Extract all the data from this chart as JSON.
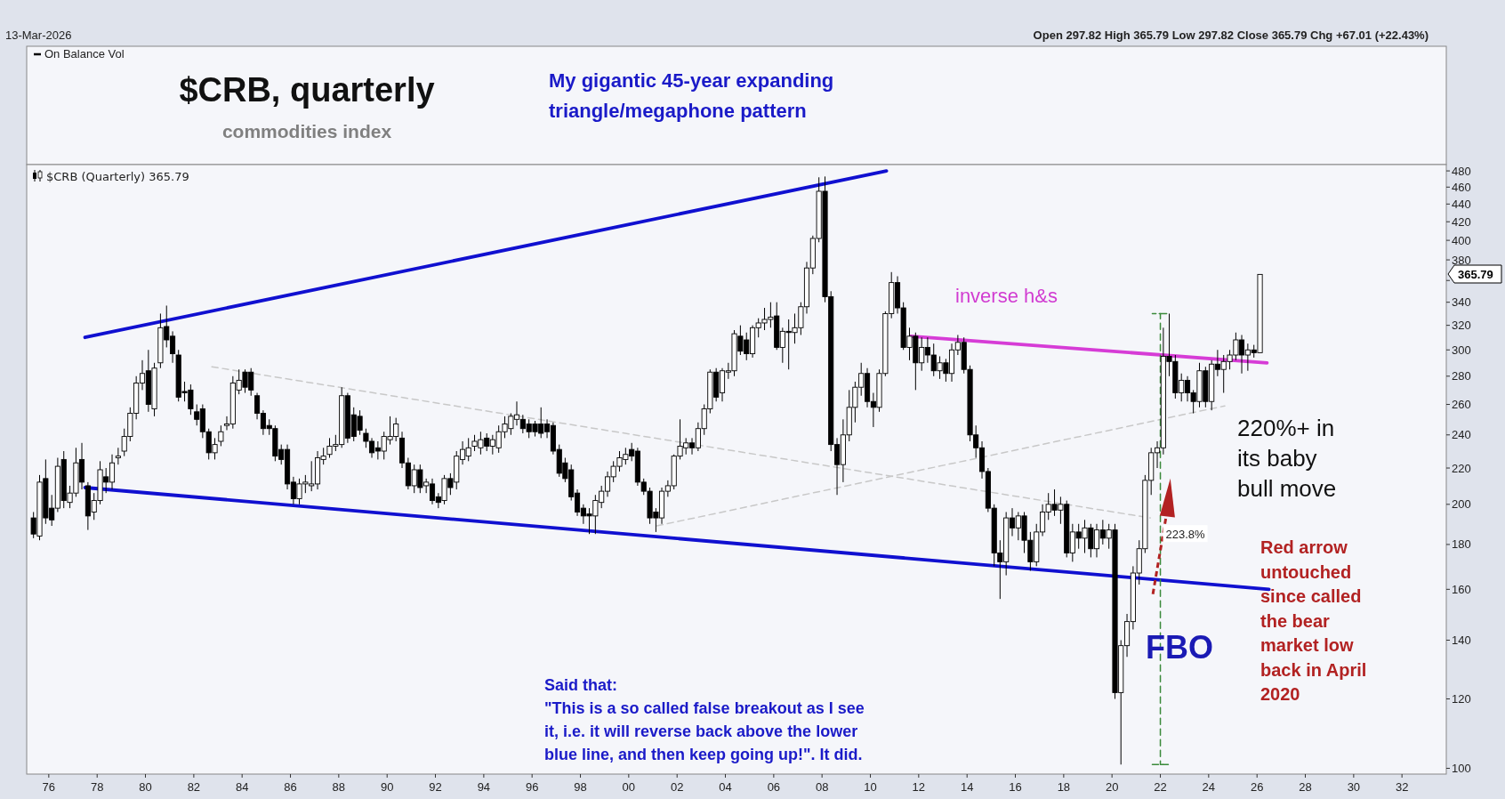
{
  "chart_data": {
    "type": "candlestick",
    "title": "$CRB, quarterly",
    "subtitle": "commodities index",
    "log": "y",
    "legend": "top left",
    "xlim": [
      "1975-02",
      "2033-11"
    ],
    "ylim": [
      98.5,
      488
    ],
    "xticks": [
      {
        "value": "1976",
        "label": "76"
      },
      {
        "value": "1978",
        "label": "78"
      },
      {
        "value": "1980",
        "label": "80"
      },
      {
        "value": "1982",
        "label": "82"
      },
      {
        "value": "1984",
        "label": "84"
      },
      {
        "value": "1986",
        "label": "86"
      },
      {
        "value": "1988",
        "label": "88"
      },
      {
        "value": "1990",
        "label": "90"
      },
      {
        "value": "1992",
        "label": "92"
      },
      {
        "value": "1994",
        "label": "94"
      },
      {
        "value": "1996",
        "label": "96"
      },
      {
        "value": "1998",
        "label": "98"
      },
      {
        "value": "2000",
        "label": "00"
      },
      {
        "value": "2002",
        "label": "02"
      },
      {
        "value": "2004",
        "label": "04"
      },
      {
        "value": "2006",
        "label": "06"
      },
      {
        "value": "2008",
        "label": "08"
      },
      {
        "value": "2010",
        "label": "10"
      },
      {
        "value": "2012",
        "label": "12"
      },
      {
        "value": "2014",
        "label": "14"
      },
      {
        "value": "2016",
        "label": "16"
      },
      {
        "value": "2018",
        "label": "18"
      },
      {
        "value": "2020",
        "label": "20"
      },
      {
        "value": "2022",
        "label": "22"
      },
      {
        "value": "2024",
        "label": "24"
      },
      {
        "value": "2026",
        "label": "26"
      },
      {
        "value": "2028",
        "label": "28"
      },
      {
        "value": "2030",
        "label": "30"
      },
      {
        "value": "2032",
        "label": "32"
      }
    ],
    "yticks": [
      100,
      120,
      140,
      160,
      180,
      200,
      220,
      240,
      260,
      280,
      300,
      320,
      340,
      {
        "value": 360,
        "label": null
      },
      380,
      400,
      420,
      440,
      460,
      480
    ],
    "series": [
      {
        "name": "$CRB (Quarterly) 365.79",
        "x": [
          "1975-05-15",
          "1975-08-15",
          "1975-11-15",
          "1976-02-15",
          "1976-05-15",
          "1976-08-15",
          "1976-11-15",
          "1977-02-15",
          "1977-05-15",
          "1977-08-15",
          "1977-11-15",
          "1978-02-15",
          "1978-05-15",
          "1978-08-15",
          "1978-11-15",
          "1979-02-15",
          "1979-05-15",
          "1979-08-15",
          "1979-11-15",
          "1980-02-15",
          "1980-05-15",
          "1980-08-15",
          "1980-11-15",
          "1981-02-15",
          "1981-05-15",
          "1981-08-15",
          "1981-11-15",
          "1982-02-15",
          "1982-05-15",
          "1982-08-15",
          "1982-11-15",
          "1983-02-15",
          "1983-05-15",
          "1983-08-15",
          "1983-11-15",
          "1984-02-15",
          "1984-05-15",
          "1984-08-15",
          "1984-11-15",
          "1985-02-15",
          "1985-05-15",
          "1985-08-15",
          "1985-11-15",
          "1986-02-15",
          "1986-05-15",
          "1986-08-15",
          "1986-11-15",
          "1987-02-15",
          "1987-05-15",
          "1987-08-15",
          "1987-11-15",
          "1988-02-15",
          "1988-05-15",
          "1988-08-15",
          "1988-11-15",
          "1989-02-15",
          "1989-05-15",
          "1989-08-15",
          "1989-11-15",
          "1990-02-15",
          "1990-05-15",
          "1990-08-15",
          "1990-11-15",
          "1991-02-15",
          "1991-05-15",
          "1991-08-15",
          "1991-11-15",
          "1992-02-15",
          "1992-05-15",
          "1992-08-15",
          "1992-11-15",
          "1993-02-15",
          "1993-05-15",
          "1993-08-15",
          "1993-11-15",
          "1994-02-15",
          "1994-05-15",
          "1994-08-15",
          "1994-11-15",
          "1995-02-15",
          "1995-05-15",
          "1995-08-15",
          "1995-11-15",
          "1996-02-15",
          "1996-05-15",
          "1996-08-15",
          "1996-11-15",
          "1997-02-15",
          "1997-05-15",
          "1997-08-15",
          "1997-11-15",
          "1998-02-15",
          "1998-05-15",
          "1998-08-15",
          "1998-11-15",
          "1999-02-15",
          "1999-05-15",
          "1999-08-15",
          "1999-11-15",
          "2000-02-15",
          "2000-05-15",
          "2000-08-15",
          "2000-11-15",
          "2001-02-15",
          "2001-05-15",
          "2001-08-15",
          "2001-11-15",
          "2002-02-15",
          "2002-05-15",
          "2002-08-15",
          "2002-11-15",
          "2003-02-15",
          "2003-05-15",
          "2003-08-15",
          "2003-11-15",
          "2004-02-15",
          "2004-05-15",
          "2004-08-15",
          "2004-11-15",
          "2005-02-15",
          "2005-05-15",
          "2005-08-15",
          "2005-11-15",
          "2006-02-15",
          "2006-05-15",
          "2006-08-15",
          "2006-11-15",
          "2007-02-15",
          "2007-05-15",
          "2007-08-15",
          "2007-11-15",
          "2008-02-15",
          "2008-05-15",
          "2008-08-15",
          "2008-11-15",
          "2009-02-15",
          "2009-05-15",
          "2009-08-15",
          "2009-11-15",
          "2010-02-15",
          "2010-05-15",
          "2010-08-15",
          "2010-11-15",
          "2011-02-15",
          "2011-05-15",
          "2011-08-15",
          "2011-11-15",
          "2012-02-15",
          "2012-05-15",
          "2012-08-15",
          "2012-11-15",
          "2013-02-15",
          "2013-05-15",
          "2013-08-15",
          "2013-11-15",
          "2014-02-15",
          "2014-05-15",
          "2014-08-15",
          "2014-11-15",
          "2015-02-15",
          "2015-05-15",
          "2015-08-15",
          "2015-11-15",
          "2016-02-15",
          "2016-05-15",
          "2016-08-15",
          "2016-11-15",
          "2017-02-15",
          "2017-05-15",
          "2017-08-15",
          "2017-11-15",
          "2018-02-15",
          "2018-05-15",
          "2018-08-15",
          "2018-11-15",
          "2019-02-15",
          "2019-05-15",
          "2019-08-15",
          "2019-11-15",
          "2020-02-15",
          "2020-05-15",
          "2020-08-15",
          "2020-11-15",
          "2021-02-15",
          "2021-05-15",
          "2021-08-15",
          "2021-11-15",
          "2022-02-15",
          "2022-05-15",
          "2022-08-15",
          "2022-11-15",
          "2023-02-15",
          "2023-05-15",
          "2023-08-15",
          "2023-11-15",
          "2024-02-15",
          "2024-05-15",
          "2024-08-15",
          "2024-11-15",
          "2025-02-15",
          "2025-05-15",
          "2025-08-15",
          "2025-11-15",
          "2026-02-15"
        ],
        "ohlc": [
          [
            193,
            196,
            183,
            185
          ],
          [
            184,
            216,
            182,
            212
          ],
          [
            214,
            225,
            190,
            193
          ],
          [
            198,
            205,
            189,
            192
          ],
          [
            198,
            226,
            196,
            221
          ],
          [
            225,
            230,
            198,
            202
          ],
          [
            201,
            210,
            198,
            206
          ],
          [
            206,
            232,
            204,
            223
          ],
          [
            225,
            235,
            208,
            212
          ],
          [
            210,
            212,
            187,
            194
          ],
          [
            196,
            206,
            192,
            202
          ],
          [
            202,
            224,
            200,
            219
          ],
          [
            215,
            220,
            206,
            212
          ],
          [
            212,
            228,
            208,
            223
          ],
          [
            226,
            232,
            222,
            227
          ],
          [
            230,
            244,
            227,
            239
          ],
          [
            239,
            258,
            236,
            254
          ],
          [
            254,
            280,
            250,
            275
          ],
          [
            275,
            292,
            270,
            282
          ],
          [
            284,
            300,
            255,
            260
          ],
          [
            257,
            290,
            252,
            286
          ],
          [
            290,
            330,
            286,
            318
          ],
          [
            319,
            337,
            302,
            308
          ],
          [
            311,
            315,
            290,
            297
          ],
          [
            296,
            300,
            262,
            265
          ],
          [
            269,
            276,
            262,
            268
          ],
          [
            270,
            274,
            253,
            257
          ],
          [
            255,
            260,
            246,
            250
          ],
          [
            257,
            260,
            238,
            242
          ],
          [
            242,
            244,
            225,
            229
          ],
          [
            229,
            238,
            225,
            234
          ],
          [
            236,
            246,
            233,
            242
          ],
          [
            246,
            252,
            243,
            247
          ],
          [
            247,
            280,
            244,
            275
          ],
          [
            270,
            285,
            267,
            277
          ],
          [
            283,
            285,
            268,
            272
          ],
          [
            283,
            286,
            266,
            270
          ],
          [
            266,
            268,
            250,
            254
          ],
          [
            254,
            256,
            240,
            244
          ],
          [
            246,
            250,
            240,
            244
          ],
          [
            244,
            246,
            224,
            227
          ],
          [
            231,
            234,
            222,
            225
          ],
          [
            231,
            234,
            208,
            211
          ],
          [
            212,
            215,
            200,
            203
          ],
          [
            203,
            214,
            200,
            211
          ],
          [
            211,
            216,
            206,
            212
          ],
          [
            210,
            224,
            207,
            211
          ],
          [
            211,
            230,
            208,
            226
          ],
          [
            225,
            232,
            222,
            227
          ],
          [
            228,
            238,
            226,
            233
          ],
          [
            233,
            240,
            230,
            234
          ],
          [
            234,
            272,
            232,
            266
          ],
          [
            266,
            268,
            235,
            238
          ],
          [
            253,
            258,
            236,
            239
          ],
          [
            252,
            256,
            240,
            243
          ],
          [
            241,
            244,
            232,
            236
          ],
          [
            236,
            238,
            226,
            229
          ],
          [
            232,
            236,
            225,
            230
          ],
          [
            230,
            242,
            225,
            239
          ],
          [
            237,
            252,
            234,
            239
          ],
          [
            239,
            251,
            236,
            247
          ],
          [
            238,
            242,
            220,
            223
          ],
          [
            223,
            226,
            208,
            210
          ],
          [
            210,
            222,
            206,
            219
          ],
          [
            219,
            222,
            206,
            209
          ],
          [
            210,
            214,
            206,
            212
          ],
          [
            211,
            214,
            200,
            202
          ],
          [
            204,
            206,
            198,
            201
          ],
          [
            202,
            216,
            200,
            214
          ],
          [
            214,
            217,
            205,
            209
          ],
          [
            212,
            230,
            208,
            227
          ],
          [
            225,
            236,
            222,
            231
          ],
          [
            227,
            238,
            224,
            232
          ],
          [
            233,
            240,
            230,
            236
          ],
          [
            232,
            242,
            228,
            237
          ],
          [
            238,
            241,
            230,
            233
          ],
          [
            233,
            240,
            228,
            237
          ],
          [
            232,
            246,
            229,
            242
          ],
          [
            242,
            252,
            238,
            247
          ],
          [
            244,
            254,
            240,
            252
          ],
          [
            250,
            262,
            246,
            253
          ],
          [
            250,
            253,
            241,
            244
          ],
          [
            247,
            250,
            238,
            242
          ],
          [
            247,
            249,
            239,
            242
          ],
          [
            247,
            258,
            238,
            241
          ],
          [
            247,
            250,
            238,
            242
          ],
          [
            246,
            248,
            228,
            230
          ],
          [
            231,
            234,
            215,
            217
          ],
          [
            223,
            226,
            212,
            214
          ],
          [
            219,
            222,
            202,
            204
          ],
          [
            206,
            208,
            194,
            196
          ],
          [
            198,
            200,
            190,
            194
          ],
          [
            195,
            198,
            185,
            194
          ],
          [
            194,
            205,
            185,
            202
          ],
          [
            201,
            210,
            198,
            207
          ],
          [
            207,
            218,
            204,
            215
          ],
          [
            215,
            224,
            212,
            221
          ],
          [
            221,
            230,
            218,
            226
          ],
          [
            225,
            232,
            222,
            228
          ],
          [
            231,
            235,
            224,
            227
          ],
          [
            230,
            232,
            210,
            212
          ],
          [
            212,
            214,
            205,
            207
          ],
          [
            207,
            209,
            190,
            193
          ],
          [
            196,
            198,
            186,
            193
          ],
          [
            193,
            209,
            190,
            207
          ],
          [
            207,
            213,
            204,
            210
          ],
          [
            210,
            228,
            208,
            227
          ],
          [
            227,
            250,
            225,
            233
          ],
          [
            232,
            238,
            228,
            235
          ],
          [
            235,
            238,
            228,
            232
          ],
          [
            232,
            248,
            230,
            244
          ],
          [
            244,
            260,
            240,
            257
          ],
          [
            257,
            285,
            254,
            283
          ],
          [
            283,
            286,
            262,
            265
          ],
          [
            268,
            286,
            262,
            284
          ],
          [
            283,
            290,
            278,
            284
          ],
          [
            284,
            316,
            280,
            313
          ],
          [
            311,
            320,
            296,
            299
          ],
          [
            308,
            314,
            292,
            297
          ],
          [
            297,
            320,
            294,
            318
          ],
          [
            318,
            326,
            310,
            322
          ],
          [
            322,
            335,
            316,
            325
          ],
          [
            325,
            340,
            318,
            327
          ],
          [
            328,
            340,
            300,
            302
          ],
          [
            302,
            318,
            290,
            315
          ],
          [
            315,
            325,
            285,
            314
          ],
          [
            314,
            330,
            305,
            318
          ],
          [
            318,
            340,
            312,
            336
          ],
          [
            336,
            378,
            330,
            372
          ],
          [
            372,
            405,
            366,
            402
          ],
          [
            402,
            472,
            398,
            455
          ],
          [
            455,
            473,
            340,
            345
          ],
          [
            345,
            350,
            230,
            234
          ],
          [
            234,
            238,
            205,
            222
          ],
          [
            222,
            250,
            212,
            240
          ],
          [
            240,
            270,
            236,
            258
          ],
          [
            258,
            276,
            248,
            272
          ],
          [
            272,
            290,
            266,
            282
          ],
          [
            282,
            286,
            258,
            262
          ],
          [
            262,
            268,
            245,
            258
          ],
          [
            258,
            285,
            255,
            282
          ],
          [
            282,
            332,
            280,
            330
          ],
          [
            330,
            368,
            326,
            358
          ],
          [
            358,
            364,
            330,
            335
          ],
          [
            335,
            340,
            300,
            302
          ],
          [
            302,
            318,
            292,
            311
          ],
          [
            311,
            314,
            270,
            290
          ],
          [
            290,
            310,
            284,
            302
          ],
          [
            302,
            310,
            290,
            296
          ],
          [
            296,
            305,
            280,
            284
          ],
          [
            284,
            295,
            278,
            290
          ],
          [
            290,
            293,
            276,
            282
          ],
          [
            282,
            305,
            276,
            300
          ],
          [
            300,
            312,
            296,
            306
          ],
          [
            306,
            310,
            282,
            285
          ],
          [
            285,
            288,
            236,
            240
          ],
          [
            240,
            246,
            226,
            232
          ],
          [
            232,
            236,
            214,
            218
          ],
          [
            218,
            220,
            196,
            198
          ],
          [
            198,
            200,
            170,
            176
          ],
          [
            176,
            182,
            156,
            172
          ],
          [
            172,
            196,
            166,
            193
          ],
          [
            193,
            198,
            184,
            188
          ],
          [
            188,
            196,
            182,
            194
          ],
          [
            194,
            196,
            176,
            182
          ],
          [
            182,
            186,
            168,
            172
          ],
          [
            172,
            190,
            170,
            186
          ],
          [
            186,
            200,
            184,
            196
          ],
          [
            196,
            206,
            192,
            200
          ],
          [
            200,
            208,
            194,
            197
          ],
          [
            197,
            204,
            190,
            200
          ],
          [
            200,
            202,
            174,
            176
          ],
          [
            176,
            190,
            172,
            186
          ],
          [
            186,
            190,
            178,
            183
          ],
          [
            183,
            192,
            176,
            188
          ],
          [
            188,
            190,
            174,
            178
          ],
          [
            178,
            190,
            174,
            187
          ],
          [
            187,
            192,
            180,
            183
          ],
          [
            183,
            190,
            178,
            187
          ],
          [
            187,
            190,
            120,
            122
          ],
          [
            122,
            140,
            101,
            138
          ],
          [
            138,
            150,
            134,
            147
          ],
          [
            147,
            170,
            144,
            167
          ],
          [
            167,
            182,
            162,
            178
          ],
          [
            178,
            216,
            176,
            213
          ],
          [
            213,
            232,
            205,
            229
          ],
          [
            229,
            236,
            220,
            232
          ],
          [
            232,
            318,
            228,
            295
          ],
          [
            295,
            330,
            280,
            291
          ],
          [
            291,
            296,
            264,
            268
          ],
          [
            268,
            282,
            262,
            277
          ],
          [
            277,
            280,
            262,
            268
          ],
          [
            268,
            270,
            254,
            262
          ],
          [
            262,
            290,
            258,
            284
          ],
          [
            284,
            287,
            258,
            262
          ],
          [
            262,
            292,
            256,
            289
          ],
          [
            289,
            300,
            280,
            285
          ],
          [
            285,
            296,
            268,
            291
          ],
          [
            291,
            300,
            285,
            296
          ],
          [
            296,
            314,
            292,
            308
          ],
          [
            308,
            312,
            282,
            296
          ],
          [
            296,
            305,
            284,
            300
          ],
          [
            300,
            304,
            294,
            297.82
          ],
          [
            297.82,
            365.79,
            297.82,
            365.79
          ]
        ]
      },
      {
        "type": "line",
        "x": [
          "1977-07-01",
          "2010-09-01"
        ],
        "values": [
          310,
          480
        ],
        "color": "#1010d0",
        "line_style": "solid"
      },
      {
        "type": "line",
        "x": [
          "1977-07-01",
          "2026-07-01"
        ],
        "values": [
          209,
          160
        ],
        "color": "#1010d0",
        "line_style": "solid"
      },
      {
        "type": "line",
        "x": [
          "2011-09-01",
          "2026-06-01"
        ],
        "values": [
          311,
          290
        ],
        "color": "#d63cd6",
        "line_style": "solid"
      },
      {
        "type": "line",
        "x": [
          "1982-10-01",
          "2021-08-01"
        ],
        "values": [
          287,
          193
        ],
        "color": "#c8c8c8",
        "line_style": "dashed"
      },
      {
        "type": "line",
        "x": [
          "2001-03-01",
          "2024-09-01"
        ],
        "values": [
          189,
          259
        ],
        "color": "#c8c8c8",
        "line_style": "dashed"
      },
      {
        "type": "line",
        "x": [
          "2021-09-01",
          "2022-05-01",
          "2022-01-01",
          "2022-01-01",
          "2021-09-01",
          "2022-05-01"
        ],
        "values": [
          101,
          101,
          101,
          330,
          330,
          330
        ],
        "color": "#3a8a3a",
        "line_style": "dashed"
      }
    ],
    "annotations": [
      "13-Mar-2026",
      "Open 297.82 High 365.79 Low 297.82 Close 365.79 Chg +67.01 (+22.43%)",
      "On Balance Vol",
      "My gigantic 45-year expanding\ntriangle/megaphone pattern",
      "inverse h&s",
      "220%+ in\nits baby\nbull move",
      "Red arrow\nuntouched\nsince called\nthe bear\nmarket low\nback in April\n2020",
      "FBO",
      "Said that:\n\"This is a so called false breakout as I see\nit, i.e. it will reverse back above the lower\nblue line, and then keep going up!\". It did.",
      {
        "text": "223.8%",
        "x": "2022-01-01",
        "y": 185
      },
      "365.79"
    ]
  }
}
